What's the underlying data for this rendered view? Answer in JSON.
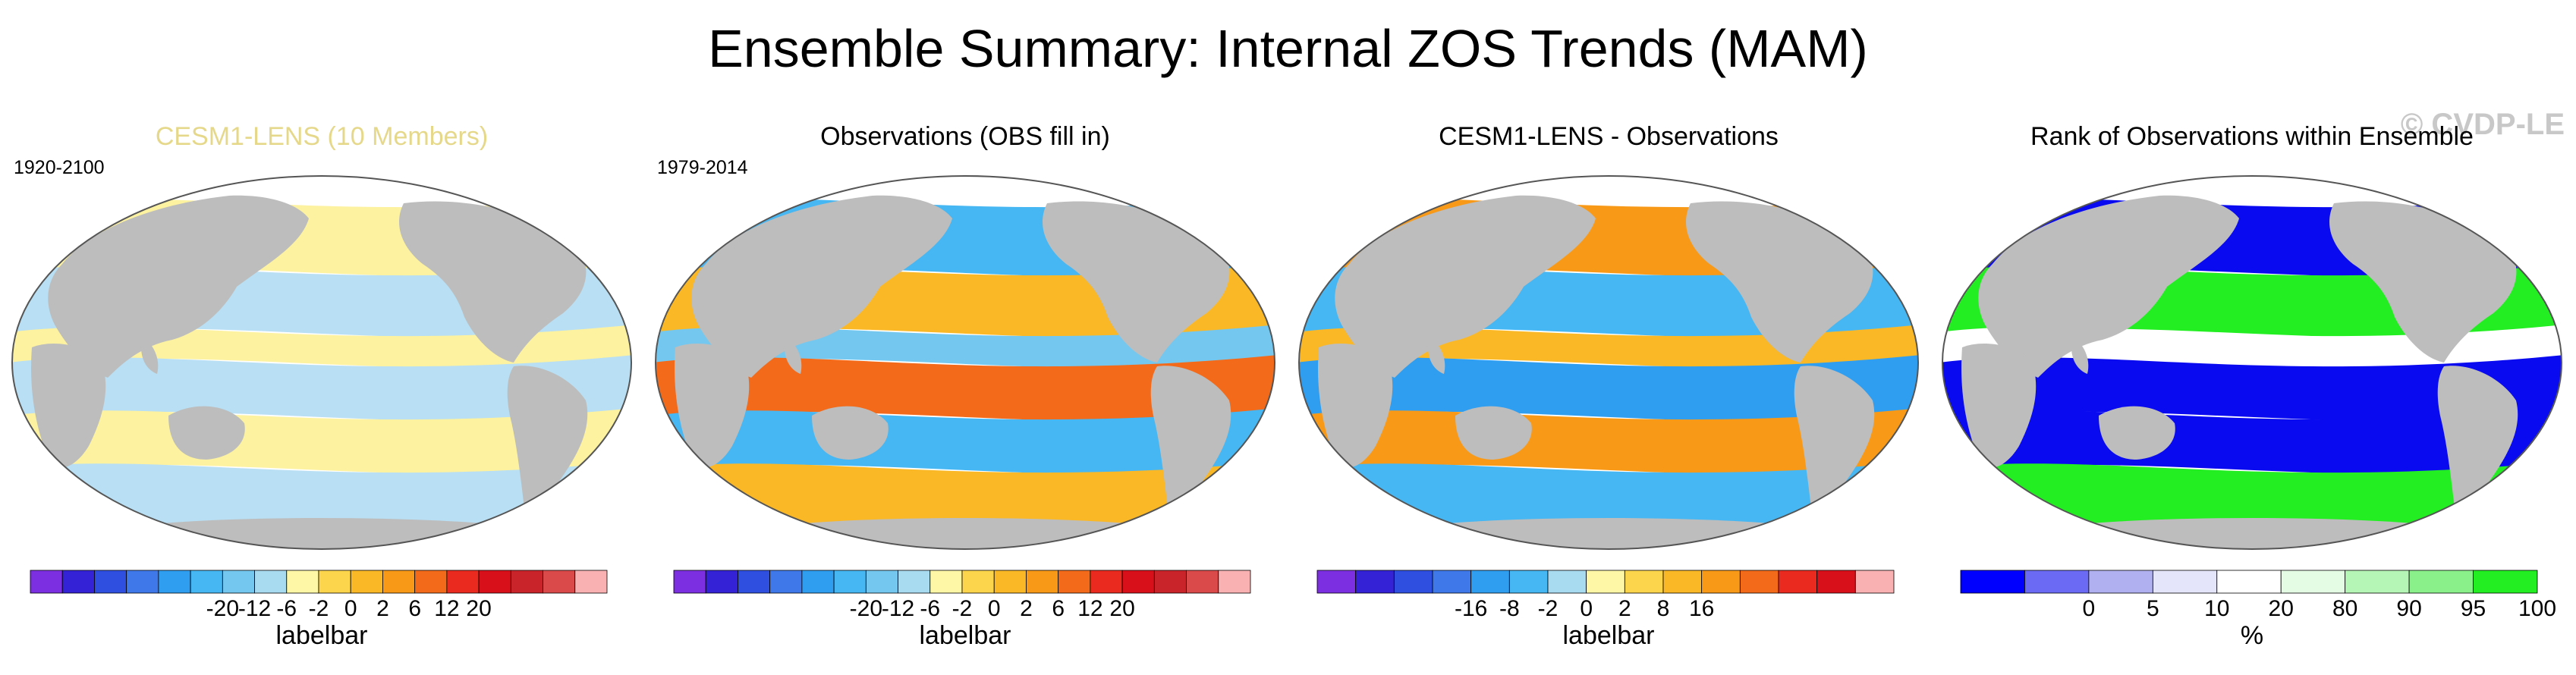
{
  "title": "Ensemble Summary: Internal ZOS Trends (MAM)",
  "watermark": "© CVDP-LE",
  "colors": {
    "land": "#bdbdbd",
    "ocean_background": "#ffffff",
    "outline": "#555555"
  },
  "panels": [
    {
      "title": "CESM1-LENS (10 Members)",
      "period": "1920-2100",
      "colorbar_title": "labelbar",
      "colorbar_labels": [
        "-20",
        "-12",
        "-6",
        "-2",
        "0",
        "2",
        "6",
        "12",
        "20"
      ],
      "colorbar_colors": [
        "#7b2fe0",
        "#3422d6",
        "#2f4fe0",
        "#3f78e8",
        "#2f9ef0",
        "#46b7f2",
        "#74c8ef",
        "#a8daf0",
        "#fdf7a6",
        "#fcd54c",
        "#fbb826",
        "#f89a18",
        "#f36a1a",
        "#ea2a1e",
        "#d8101a",
        "#c8242a",
        "#da4a4a",
        "#f9b1b1"
      ],
      "map_fill": [
        "#fdf2a0",
        "#b8dff3",
        "#fdf2a0",
        "#b8dff3"
      ]
    },
    {
      "title": "Observations (OBS fill in)",
      "period": "1979-2014",
      "colorbar_title": "labelbar",
      "colorbar_labels": [
        "-20",
        "-12",
        "-6",
        "-2",
        "0",
        "2",
        "6",
        "12",
        "20"
      ],
      "colorbar_colors": [
        "#7b2fe0",
        "#3422d6",
        "#2f4fe0",
        "#3f78e8",
        "#2f9ef0",
        "#46b7f2",
        "#74c8ef",
        "#a8daf0",
        "#fdf7a6",
        "#fcd54c",
        "#fbb826",
        "#f89a18",
        "#f36a1a",
        "#ea2a1e",
        "#d8101a",
        "#c8242a",
        "#da4a4a",
        "#f9b1b1"
      ],
      "map_fill": [
        "#46b7f2",
        "#fbb826",
        "#74c8ef",
        "#f36a1a"
      ]
    },
    {
      "title": "CESM1-LENS - Observations",
      "period": "",
      "colorbar_title": "labelbar",
      "colorbar_labels": [
        "-16",
        "-8",
        "-2",
        "0",
        "2",
        "8",
        "16"
      ],
      "colorbar_colors": [
        "#7b2fe0",
        "#3422d6",
        "#2f4fe0",
        "#3f78e8",
        "#2f9ef0",
        "#46b7f2",
        "#a8daf0",
        "#fdf7a6",
        "#fcd54c",
        "#fbb826",
        "#f89a18",
        "#f36a1a",
        "#ea2a1e",
        "#d8101a",
        "#f9b1b1"
      ],
      "map_fill": [
        "#f89a18",
        "#46b7f2",
        "#fbb826",
        "#2f9ef0"
      ]
    },
    {
      "title": "Rank of Observations within Ensemble",
      "period": "",
      "colorbar_title": "%",
      "colorbar_labels": [
        "0",
        "5",
        "10",
        "20",
        "80",
        "90",
        "95",
        "100"
      ],
      "colorbar_colors": [
        "#0000ff",
        "#6a6af5",
        "#b0b0f0",
        "#e4e4fb",
        "#ffffff",
        "#e4fbe4",
        "#b5f5b5",
        "#8af08a",
        "#22ee22"
      ],
      "map_fill": [
        "#0a0af0",
        "#22ee22",
        "#ffffff",
        "#0a0af0"
      ]
    }
  ]
}
